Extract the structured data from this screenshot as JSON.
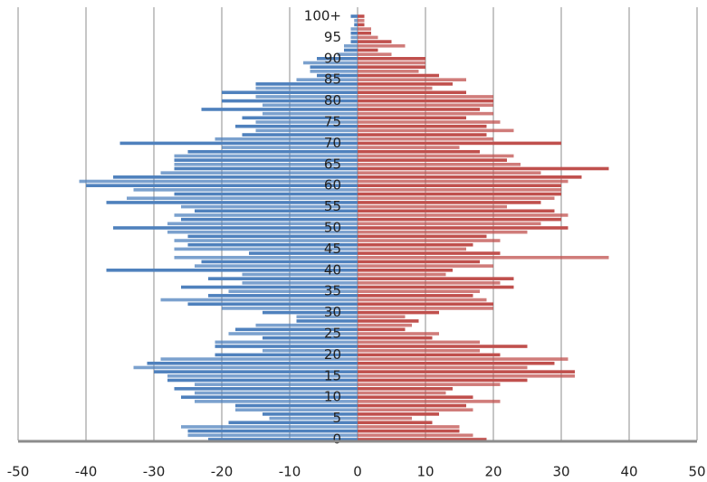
{
  "chart_data": {
    "type": "pyramid",
    "categories": [
      "0",
      null,
      null,
      null,
      null,
      "5",
      null,
      null,
      null,
      null,
      "10",
      null,
      null,
      null,
      null,
      "15",
      null,
      null,
      null,
      null,
      "20",
      null,
      null,
      null,
      null,
      "25",
      null,
      null,
      null,
      null,
      "30",
      null,
      null,
      null,
      null,
      "35",
      null,
      null,
      null,
      null,
      "40",
      null,
      null,
      null,
      null,
      "45",
      null,
      null,
      null,
      null,
      "50",
      null,
      null,
      null,
      null,
      "55",
      null,
      null,
      null,
      null,
      "60",
      null,
      null,
      null,
      null,
      "65",
      null,
      null,
      null,
      null,
      "70",
      null,
      null,
      null,
      null,
      "75",
      null,
      null,
      null,
      null,
      "80",
      null,
      null,
      null,
      null,
      "85",
      null,
      null,
      null,
      null,
      "90",
      null,
      null,
      null,
      null,
      "95",
      null,
      null,
      null,
      null,
      "100+"
    ],
    "series": [
      {
        "color": "#4f81bd",
        "values": [
          -22,
          -25,
          -25,
          -26,
          -19,
          -13,
          -14,
          -18,
          -18,
          -24,
          -26,
          -24,
          -27,
          -24,
          -28,
          -28,
          -30,
          -33,
          -31,
          -29,
          -21,
          -14,
          -21,
          -21,
          -14,
          -19,
          -18,
          -15,
          -9,
          -9,
          -14,
          -20,
          -25,
          -29,
          -22,
          -19,
          -26,
          -17,
          -22,
          -17,
          -37,
          -24,
          -23,
          -27,
          -16,
          -27,
          -25,
          -27,
          -25,
          -28,
          -36,
          -28,
          -26,
          -27,
          -24,
          -26,
          -37,
          -34,
          -27,
          -33,
          -40,
          -41,
          -36,
          -29,
          -27,
          -27,
          -27,
          -27,
          -25,
          -20,
          -35,
          -21,
          -17,
          -15,
          -18,
          -15,
          -17,
          -14,
          -23,
          -14,
          -20,
          -15,
          -20,
          -15,
          -15,
          -9,
          -6,
          -7,
          -7,
          -8,
          -6,
          -3,
          -2,
          -2,
          -1,
          -1,
          -1,
          -1,
          -0.5,
          -0.5,
          -1
        ]
      },
      {
        "color": "#c0504d",
        "values": [
          19,
          17,
          15,
          15,
          11,
          8,
          12,
          17,
          16,
          21,
          17,
          13,
          14,
          21,
          25,
          32,
          32,
          25,
          29,
          31,
          21,
          18,
          25,
          18,
          11,
          12,
          7,
          8,
          9,
          7,
          12,
          20,
          20,
          19,
          17,
          18,
          23,
          21,
          23,
          13,
          14,
          20,
          18,
          37,
          21,
          16,
          17,
          21,
          19,
          25,
          31,
          27,
          30,
          31,
          29,
          22,
          27,
          29,
          30,
          30,
          30,
          31,
          33,
          27,
          37,
          24,
          22,
          23,
          18,
          15,
          30,
          20,
          19,
          23,
          19,
          21,
          16,
          20,
          18,
          20,
          20,
          20,
          16,
          11,
          14,
          16,
          12,
          9,
          10,
          10,
          10,
          5,
          3,
          7,
          5,
          3,
          2,
          2,
          1,
          1,
          1
        ]
      }
    ],
    "xlim": [
      -50,
      50
    ],
    "xticks": [
      -50,
      -40,
      -30,
      -20,
      -10,
      0,
      10,
      20,
      30,
      40,
      50
    ],
    "grid": true
  }
}
